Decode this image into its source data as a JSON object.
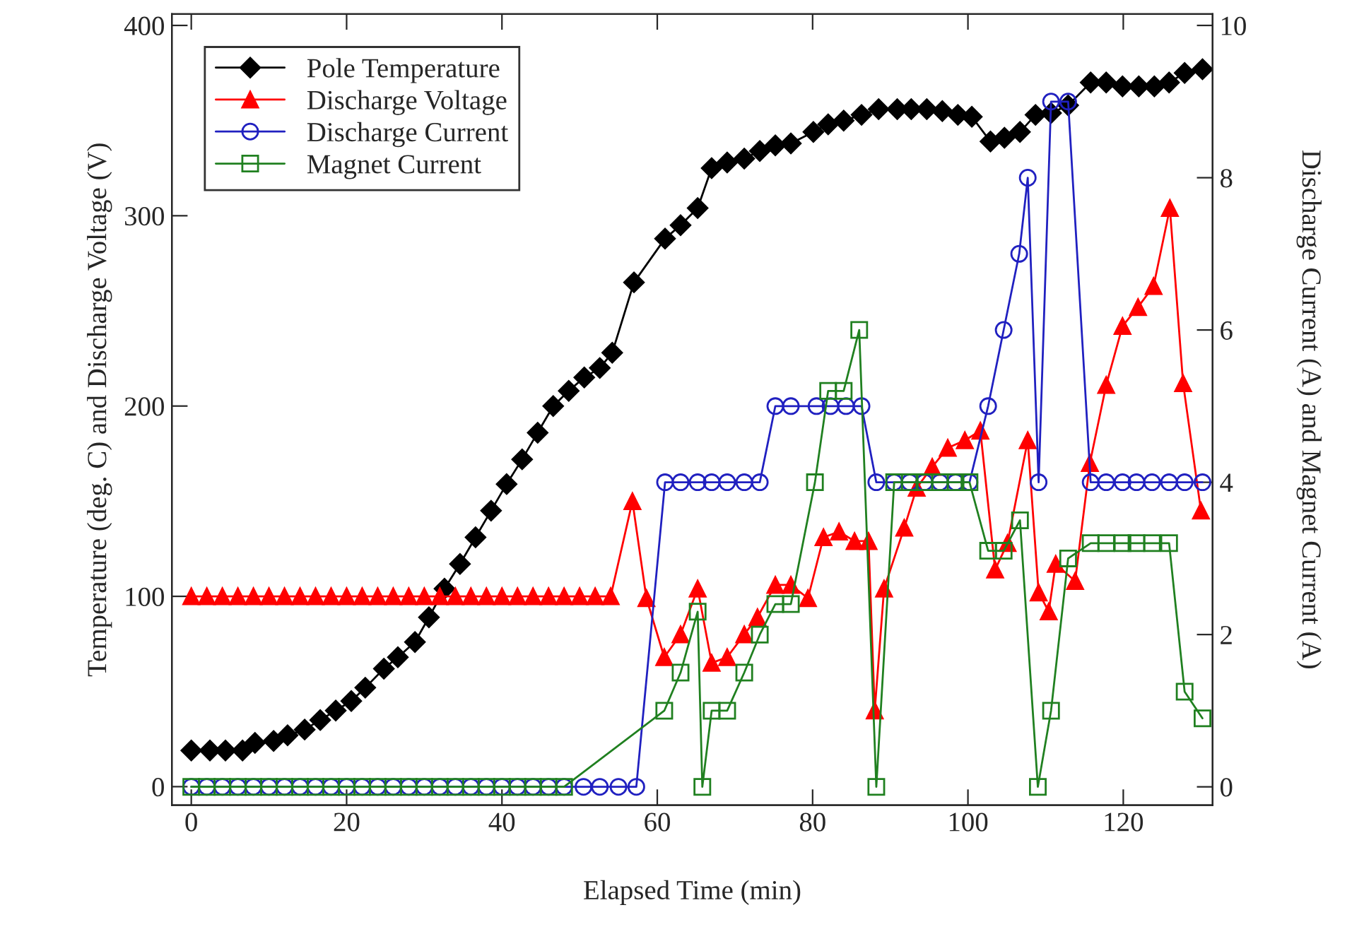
{
  "chart_data": {
    "type": "line",
    "xlabel": "Elapsed Time (min)",
    "ylabel": "Temperature (deg. C) and Discharge Voltage (V)",
    "y2label": "Discharge Current (A) and Magnet Current (A)",
    "xlim": [
      -2.5,
      131.5
    ],
    "xticks": [
      0,
      20,
      40,
      60,
      80,
      100,
      120
    ],
    "ylim": [
      -9.7,
      406
    ],
    "yticks": [
      0,
      100,
      200,
      300,
      400
    ],
    "y2lim": [
      -0.24,
      10.15
    ],
    "y2ticks": [
      0,
      2,
      4,
      6,
      8,
      10
    ],
    "legend": "top left",
    "grid": false,
    "line_style": "solid",
    "series": [
      {
        "name": "Pole Temperature",
        "color": "#000000",
        "marker": "diamond",
        "x": [
          0,
          2.4,
          4.4,
          6.6,
          8.2,
          10.6,
          12.4,
          14.6,
          16.6,
          18.6,
          20.6,
          22.4,
          24.8,
          26.6,
          28.8,
          30.6,
          32.6,
          34.6,
          36.6,
          38.6,
          40.6,
          42.6,
          44.6,
          46.6,
          48.6,
          50.6,
          52.6,
          54.2,
          57,
          61,
          63,
          65.2,
          67,
          69,
          71.2,
          73.2,
          75.2,
          77.2,
          80.1,
          82,
          84,
          86.3,
          88.5,
          90.9,
          92.7,
          94.7,
          96.7,
          98.7,
          100.5,
          102.9,
          104.7,
          106.7,
          108.7,
          110.7,
          112.9,
          115.8,
          117.8,
          119.9,
          122,
          124,
          125.9,
          127.9,
          130.2
        ],
        "values": [
          19,
          19,
          19,
          19,
          23,
          24,
          27,
          30,
          35,
          40,
          45,
          52,
          62,
          68,
          76,
          89,
          104,
          117,
          131,
          145,
          159,
          172,
          186,
          200,
          208,
          215,
          220,
          228,
          265,
          288,
          295,
          304,
          325,
          328,
          330,
          334,
          337,
          338,
          344,
          348,
          350,
          353,
          356,
          356,
          356,
          356,
          355,
          353,
          352,
          339,
          341,
          344,
          353,
          354,
          358,
          370,
          370,
          368,
          368,
          368,
          370,
          375,
          377
        ]
      },
      {
        "name": "Discharge Voltage",
        "color": "#ff0000",
        "marker": "triangle",
        "x": [
          0,
          2,
          4,
          6,
          8,
          10,
          12,
          14,
          16,
          18,
          20,
          22,
          24,
          26,
          28,
          30,
          32,
          34,
          36,
          38,
          40,
          42,
          44,
          46,
          48,
          50,
          52,
          54,
          56.8,
          58.6,
          60.9,
          63,
          65.2,
          67,
          69,
          71.2,
          72.9,
          75.2,
          77.2,
          79.4,
          81.4,
          83.4,
          85.4,
          87.2,
          88,
          89.2,
          91.8,
          93.4,
          95.4,
          97.4,
          99.6,
          101.6,
          103.5,
          105.1,
          107.7,
          109.1,
          110.4,
          111.3,
          113.8,
          115.7,
          117.8,
          119.9,
          121.9,
          123.9,
          126,
          127.7,
          130
        ],
        "values": [
          100,
          100,
          100,
          100,
          100,
          100,
          100,
          100,
          100,
          100,
          100,
          100,
          100,
          100,
          100,
          100,
          100,
          100,
          100,
          100,
          100,
          100,
          100,
          100,
          100,
          100,
          100,
          100,
          150,
          99,
          68,
          80,
          104,
          65,
          68,
          80,
          89,
          106,
          106,
          99,
          131,
          134,
          129,
          129,
          40,
          104,
          136,
          157,
          168,
          178,
          182,
          187,
          114,
          128,
          182,
          102,
          92,
          117,
          108,
          170,
          211,
          242,
          252,
          263,
          304,
          212,
          145
        ]
      },
      {
        "name": "Discharge Current",
        "color": "#2020c0",
        "marker": "circle",
        "axis": "y2",
        "x": [
          0,
          2,
          4,
          6,
          8,
          10,
          12,
          14,
          16,
          18,
          20,
          22,
          24,
          26,
          28,
          30,
          32,
          34,
          36,
          38,
          40,
          42,
          44,
          46,
          48,
          50.5,
          52.6,
          55,
          57.3,
          61,
          63,
          65.2,
          67,
          69,
          71.2,
          73.2,
          75.2,
          77.2,
          80.5,
          82.3,
          84.3,
          86.3,
          88.2,
          90.5,
          92.5,
          94.4,
          96.4,
          98.4,
          100.2,
          102.6,
          104.6,
          106.6,
          107.7,
          109.1,
          110.7,
          112.9,
          115.8,
          117.8,
          119.9,
          121.7,
          123.7,
          125.9,
          127.9,
          130.2
        ],
        "values": [
          0,
          0,
          0,
          0,
          0,
          0,
          0,
          0,
          0,
          0,
          0,
          0,
          0,
          0,
          0,
          0,
          0,
          0,
          0,
          0,
          0,
          0,
          0,
          0,
          0,
          0,
          0,
          0,
          0,
          4,
          4,
          4,
          4,
          4,
          4,
          4,
          5,
          5,
          5,
          5,
          5,
          5,
          4,
          4,
          4,
          4,
          4,
          4,
          4,
          5,
          6,
          7,
          8,
          4,
          9,
          9,
          4,
          4,
          4,
          4,
          4,
          4,
          4,
          4
        ]
      },
      {
        "name": "Magnet Current",
        "color": "#208020",
        "marker": "square",
        "axis": "y2",
        "x": [
          0,
          2,
          4,
          6,
          8,
          10,
          12,
          14,
          16,
          18,
          20,
          22,
          24,
          26,
          28,
          30,
          32,
          34,
          36,
          38,
          40,
          42,
          44,
          46,
          48,
          60.9,
          63,
          65.2,
          65.8,
          67,
          69,
          71.2,
          73.2,
          75.2,
          77.2,
          80.3,
          82,
          84,
          86,
          88.2,
          90.5,
          92.5,
          94.4,
          96.4,
          98.4,
          100.2,
          102.6,
          104.6,
          106.7,
          109,
          110.7,
          112.9,
          115.8,
          117.8,
          119.9,
          121.7,
          123.7,
          125.9,
          127.9,
          130.2
        ],
        "values": [
          0,
          0,
          0,
          0,
          0,
          0,
          0,
          0,
          0,
          0,
          0,
          0,
          0,
          0,
          0,
          0,
          0,
          0,
          0,
          0,
          0,
          0,
          0,
          0,
          0,
          1.0,
          1.5,
          2.3,
          0,
          1.0,
          1.0,
          1.5,
          2.0,
          2.4,
          2.4,
          4.0,
          5.2,
          5.2,
          6.0,
          0,
          4,
          4,
          4,
          4,
          4,
          4,
          3.1,
          3.1,
          3.5,
          0,
          1.0,
          3.0,
          3.2,
          3.2,
          3.2,
          3.2,
          3.2,
          3.2,
          1.25,
          0.9
        ]
      }
    ]
  }
}
